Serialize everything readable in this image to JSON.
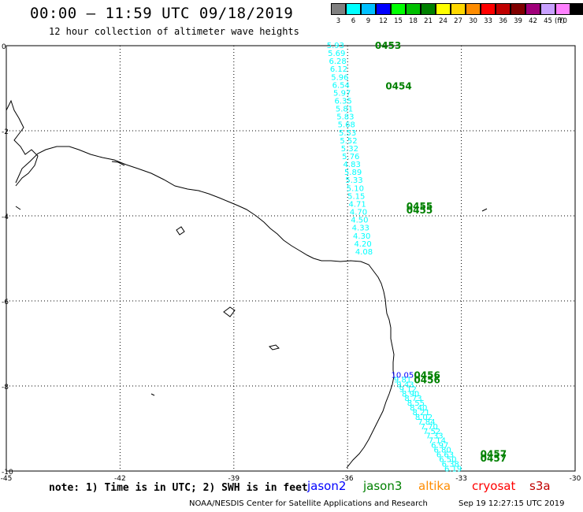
{
  "header": {
    "title": "00:00 – 11:59 UTC 09/18/2019",
    "subtitle": "12 hour collection of altimeter wave heights"
  },
  "legend": {
    "units": "(ft)",
    "bins": [
      {
        "label": "3",
        "color": "#808080"
      },
      {
        "label": "6",
        "color": "#00ffff"
      },
      {
        "label": "9",
        "color": "#00c0ff"
      },
      {
        "label": "12",
        "color": "#0000ff"
      },
      {
        "label": "15",
        "color": "#00ff00"
      },
      {
        "label": "18",
        "color": "#00c000"
      },
      {
        "label": "21",
        "color": "#008000"
      },
      {
        "label": "24",
        "color": "#ffff00"
      },
      {
        "label": "27",
        "color": "#ffd700"
      },
      {
        "label": "30",
        "color": "#ff8c00"
      },
      {
        "label": "33",
        "color": "#ff0000"
      },
      {
        "label": "36",
        "color": "#c00000"
      },
      {
        "label": "39",
        "color": "#800000"
      },
      {
        "label": "42",
        "color": "#a0007a"
      },
      {
        "label": "45",
        "color": "#c8a0ff"
      },
      {
        "label": "70",
        "color": "#ff80ff"
      },
      {
        "label": "",
        "color": "#000000"
      }
    ]
  },
  "axes": {
    "x_ticks": [
      "-45",
      "-42",
      "-39",
      "-36",
      "-33",
      "-30"
    ],
    "x_values": [
      -45,
      -42,
      -39,
      -36,
      -33,
      -30
    ],
    "y_ticks": [
      "0",
      "-2",
      "-4",
      "-6",
      "-8",
      "-10"
    ],
    "y_values": [
      0,
      -2,
      -4,
      -6,
      -8,
      -10
    ],
    "lon_range": [
      -45,
      -30
    ],
    "lat_range": [
      -10,
      0
    ]
  },
  "tracks": [
    {
      "times": [
        "0453",
        "0454",
        "0455",
        "0455"
      ],
      "time_lat": [
        0.0,
        -0.95,
        -3.78,
        -3.87
      ],
      "time_lon": [
        -35.28,
        -35.0,
        -34.45,
        -34.45
      ],
      "color": "#00ffff",
      "time_color": "#008000",
      "lon_start": -36.55,
      "lat_start": 0.0,
      "lon_end": -35.8,
      "lat_end": -4.85,
      "labels": [
        "5.93",
        "5.69",
        "6.28",
        "6.12",
        "5.96",
        "6.54",
        "5.97",
        "6.35",
        "5.81",
        "5.83",
        "5.68",
        "5.53",
        "5.52",
        "5.32",
        "5.76",
        "4.83",
        "5.89",
        "5.33",
        "5.10",
        "5.15",
        "4.71",
        "4.70",
        "4.50",
        "4.33",
        "4.30",
        "4.20",
        "4.08"
      ]
    },
    {
      "times": [
        "0456",
        "0456",
        "0457",
        "0457"
      ],
      "time_lat": [
        -7.75,
        -7.86,
        -9.6,
        -9.7
      ],
      "time_lon": [
        -34.25,
        -34.25,
        -32.5,
        -32.5
      ],
      "color": "#00ffff",
      "first_color": "#0000ff",
      "time_color": "#008000",
      "lon_start": -34.85,
      "lat_start": -7.75,
      "lon_end": -33.45,
      "lat_end": -9.95,
      "labels": [
        "10.05",
        "9.81",
        "9.43",
        "9.12",
        "8.90",
        "8.73",
        "8.55",
        "8.40",
        "8.21",
        "8.02",
        "7.84",
        "7.70",
        "7.52",
        "7.33",
        "7.14",
        "6.97",
        "6.80",
        "6.63",
        "6.50",
        "6.38",
        "6.19"
      ]
    }
  ],
  "satellites": [
    {
      "name": "jason2",
      "color": "#0000ff"
    },
    {
      "name": "jason3",
      "color": "#008000"
    },
    {
      "name": "altika",
      "color": "#ff8c00"
    },
    {
      "name": "cryosat",
      "color": "#ff0000"
    },
    {
      "name": "s3a",
      "color": "#c00000"
    }
  ],
  "note": "note: 1) Time is in UTC; 2) SWH is in feet",
  "footer": "NOAA/NESDIS Center for Satellite Applications and Research",
  "timestamp": "Sep 19 12:27:15 UTC 2019"
}
